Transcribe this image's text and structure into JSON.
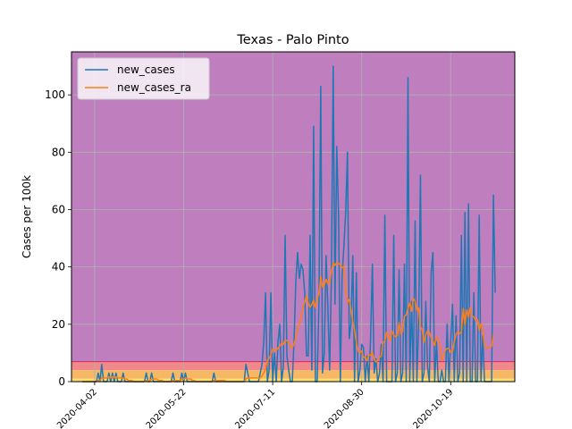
{
  "chart_data": {
    "type": "line",
    "title": "Texas - Palo Pinto",
    "xlabel": "",
    "ylabel": "Cases per 100k",
    "x_start": "2020-03-26",
    "x_tick_labels": [
      "2020-04-02",
      "2020-05-22",
      "2020-07-11",
      "2020-08-30",
      "2020-10-19"
    ],
    "xlim": [
      "2020-03-20",
      "2020-11-24"
    ],
    "ylim": [
      0,
      115
    ],
    "y_ticks": [
      0,
      20,
      40,
      60,
      80,
      100
    ],
    "grid": true,
    "legend_position": "top-left",
    "background_bands": [
      {
        "from": 0,
        "to": 1,
        "color": "#f7e16c"
      },
      {
        "from": 1,
        "to": 4,
        "color": "#f7b866"
      },
      {
        "from": 4,
        "to": 7,
        "color": "#f08a8a"
      },
      {
        "from": 7,
        "to": 115,
        "color": "#bf7fbf"
      }
    ],
    "threshold_line": {
      "value": 7,
      "color": "#d62f6b"
    },
    "series": [
      {
        "name": "new_cases",
        "color": "#1f77b4",
        "values": [
          0,
          0,
          0,
          0,
          0,
          0,
          0,
          0,
          0,
          3,
          0,
          6,
          0,
          0,
          0,
          3,
          0,
          3,
          0,
          3,
          0,
          0,
          0,
          3,
          0,
          0,
          0,
          0,
          0,
          0,
          0,
          0,
          0,
          0,
          0,
          0,
          3,
          0,
          0,
          3,
          0,
          0,
          0,
          0,
          0,
          0,
          0,
          0,
          0,
          0,
          0,
          3,
          0,
          0,
          0,
          0,
          3,
          0,
          3,
          0,
          0,
          0,
          0,
          0,
          0,
          0,
          0,
          0,
          0,
          0,
          0,
          0,
          0,
          0,
          3,
          0,
          0,
          0,
          0,
          0,
          0,
          0,
          0,
          0,
          0,
          0,
          0,
          0,
          0,
          0,
          0,
          0,
          6,
          3,
          0,
          0,
          0,
          0,
          0,
          0,
          3,
          6,
          14,
          31,
          0,
          4,
          31,
          0,
          10,
          0,
          14,
          20,
          0,
          5,
          51,
          9,
          4,
          0,
          0,
          14,
          35,
          45,
          36,
          41,
          39,
          31,
          9,
          9,
          51,
          4,
          89,
          0,
          0,
          28,
          103,
          3,
          10,
          44,
          26,
          4,
          37,
          110,
          27,
          82,
          58,
          0,
          37,
          47,
          59,
          80,
          15,
          20,
          44,
          0,
          38,
          0,
          4,
          13,
          12,
          0,
          9,
          0,
          15,
          41,
          3,
          8,
          0,
          3,
          13,
          0,
          58,
          0,
          0,
          0,
          0,
          51,
          0,
          3,
          39,
          0,
          3,
          41,
          0,
          106,
          0,
          28,
          0,
          56,
          0,
          21,
          72,
          0,
          3,
          28,
          5,
          0,
          38,
          45,
          0,
          14,
          0,
          0,
          4,
          0,
          0,
          20,
          0,
          14,
          27,
          0,
          23,
          0,
          3,
          51,
          0,
          59,
          0,
          62,
          0,
          0,
          31,
          0,
          0,
          58,
          0,
          16,
          0,
          0,
          0,
          0,
          0,
          65,
          31
        ]
      },
      {
        "name": "new_cases_ra",
        "color": "#ff7f0e",
        "values": [
          0,
          0,
          0,
          0,
          0,
          0,
          0,
          0,
          0,
          0.4,
          0.4,
          1.3,
          1.3,
          1.3,
          1.3,
          1.7,
          1.3,
          1.7,
          1.3,
          1.7,
          1.3,
          1.3,
          1.3,
          1.3,
          0.9,
          0.9,
          0.4,
          0.4,
          0.4,
          0,
          0,
          0,
          0,
          0,
          0,
          0,
          0.4,
          0.4,
          0.4,
          0.9,
          0.9,
          0.9,
          0.9,
          0.4,
          0.4,
          0.4,
          0,
          0,
          0,
          0,
          0,
          0.4,
          0.4,
          0.4,
          0.4,
          0.4,
          0.9,
          0.9,
          1.3,
          0.9,
          0.9,
          0.9,
          0.4,
          0.4,
          0,
          0,
          0,
          0,
          0,
          0,
          0,
          0,
          0,
          0,
          0.4,
          0.4,
          0.4,
          0.4,
          0.4,
          0.4,
          0.4,
          0,
          0,
          0,
          0,
          0,
          0,
          0,
          0,
          0,
          0,
          0,
          0.9,
          1.3,
          1.3,
          1.3,
          1.3,
          1.3,
          1.3,
          1.3,
          1.3,
          2.1,
          3.1,
          4.2,
          7.5,
          8.1,
          9.5,
          11.4,
          11.0,
          10.8,
          11.8,
          12.4,
          13.5,
          13.0,
          14.5,
          14.3,
          13.7,
          12.0,
          11.6,
          13.2,
          15.4,
          18.3,
          20.3,
          22.1,
          25.6,
          27.7,
          30.0,
          27.3,
          25.9,
          26.9,
          28.5,
          25.9,
          29.1,
          30.6,
          36.7,
          32.9,
          33.5,
          35.7,
          34.1,
          34.3,
          38.6,
          41.5,
          40.5,
          41.6,
          41.2,
          40.7,
          39.6,
          40.3,
          32.0,
          27.8,
          28.6,
          25.1,
          21.0,
          17.8,
          13.6,
          10.6,
          10.1,
          10.7,
          8.5,
          8.5,
          7.3,
          9.4,
          9.2,
          10.3,
          7.9,
          6.9,
          7.5,
          8.5,
          8.9,
          13.7,
          14.2,
          17.2,
          15.9,
          14.1,
          17.7,
          16.1,
          15.7,
          16.0,
          20.6,
          16.6,
          17.4,
          22.8,
          23.3,
          25.5,
          27.4,
          24.5,
          29.0,
          28.1,
          24.7,
          25.7,
          19.1,
          18.1,
          13.5,
          16.3,
          17.7,
          17.3,
          15.2,
          14.2,
          12.6,
          15.5,
          14.9,
          12.6,
          7.3,
          9.0,
          11.0,
          11.6,
          11.5,
          10.2,
          10.4,
          13.9,
          16.6,
          17.3,
          16.8,
          17.3,
          25.5,
          19.6,
          25.0,
          22.3,
          25.8,
          23.0,
          22.5,
          21.3,
          21.7,
          17.7,
          20.3,
          18.0,
          12.3,
          11.8,
          11.6,
          12.0,
          12.3,
          16.4
        ]
      }
    ]
  }
}
